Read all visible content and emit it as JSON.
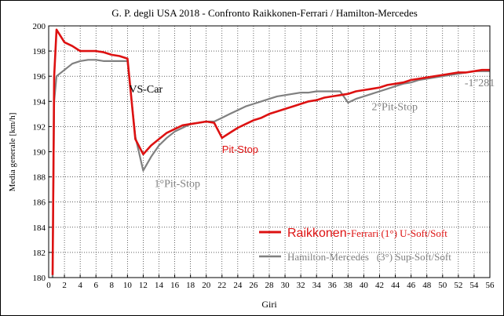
{
  "chart_data": {
    "type": "line",
    "title": "G. P. degli USA 2018 - Confronto Raikkonen-Ferrari / Hamilton-Mercedes",
    "xlabel": "Giri",
    "ylabel": "Media generale  [km/h]",
    "xlim": [
      0,
      56
    ],
    "ylim": [
      180,
      200
    ],
    "xticks": [
      0,
      2,
      4,
      6,
      8,
      10,
      12,
      14,
      16,
      18,
      20,
      22,
      24,
      26,
      28,
      30,
      32,
      34,
      36,
      38,
      40,
      42,
      44,
      46,
      48,
      50,
      52,
      54,
      56
    ],
    "yticks": [
      180,
      182,
      184,
      186,
      188,
      190,
      192,
      194,
      196,
      198,
      200
    ],
    "grid": true,
    "legend_position": "bottom-right",
    "series": [
      {
        "name_main": "Raikkonen-",
        "name_team": "Ferrari (1°) U-Soft/Soft",
        "color": "#dd1111",
        "x": [
          0.5,
          0.7,
          1,
          2,
          3,
          4,
          5,
          6,
          7,
          8,
          9,
          10,
          11,
          12,
          13,
          14,
          15,
          16,
          17,
          18,
          19,
          20,
          21,
          22,
          23,
          24,
          25,
          26,
          27,
          28,
          29,
          30,
          31,
          32,
          33,
          34,
          35,
          36,
          37,
          38,
          39,
          40,
          41,
          42,
          43,
          44,
          45,
          46,
          47,
          48,
          49,
          50,
          51,
          52,
          53,
          54,
          55,
          56
        ],
        "y": [
          180.2,
          196.0,
          199.7,
          198.7,
          198.4,
          198.0,
          198.0,
          198.0,
          197.9,
          197.7,
          197.6,
          197.4,
          191.0,
          189.8,
          190.5,
          191.0,
          191.5,
          191.8,
          192.1,
          192.2,
          192.3,
          192.4,
          192.3,
          191.1,
          191.5,
          191.9,
          192.2,
          192.5,
          192.7,
          193.0,
          193.2,
          193.4,
          193.6,
          193.8,
          194.0,
          194.1,
          194.3,
          194.4,
          194.5,
          194.6,
          194.8,
          194.9,
          195.0,
          195.1,
          195.3,
          195.4,
          195.5,
          195.7,
          195.8,
          195.9,
          196.0,
          196.1,
          196.2,
          196.3,
          196.3,
          196.4,
          196.5,
          196.5
        ]
      },
      {
        "name": "Hamilton-Mercedes   (3°) Sup-Soft/Soft",
        "color": "#808080",
        "x": [
          0.5,
          0.7,
          1,
          2,
          3,
          4,
          5,
          6,
          7,
          8,
          9,
          10,
          11,
          12,
          13,
          14,
          15,
          16,
          17,
          18,
          19,
          20,
          21,
          22,
          23,
          24,
          25,
          26,
          27,
          28,
          29,
          30,
          31,
          32,
          33,
          34,
          35,
          36,
          37,
          38,
          39,
          40,
          41,
          42,
          43,
          44,
          45,
          46,
          47,
          48,
          49,
          50,
          51,
          52,
          53,
          54,
          55,
          56
        ],
        "y": [
          180.0,
          194.0,
          196.0,
          196.5,
          197.0,
          197.2,
          197.3,
          197.3,
          197.2,
          197.2,
          197.2,
          197.2,
          191.2,
          188.5,
          189.6,
          190.5,
          191.1,
          191.6,
          191.9,
          192.2,
          192.3,
          192.4,
          192.4,
          192.7,
          193.0,
          193.3,
          193.6,
          193.8,
          194.0,
          194.2,
          194.4,
          194.5,
          194.6,
          194.7,
          194.7,
          194.8,
          194.8,
          194.8,
          194.8,
          193.9,
          194.2,
          194.4,
          194.6,
          194.8,
          195.0,
          195.2,
          195.4,
          195.5,
          195.7,
          195.8,
          195.9,
          196.0,
          196.1,
          196.2,
          196.3,
          196.4,
          196.4,
          196.4
        ]
      }
    ],
    "annotations": [
      {
        "id": "vs-car",
        "text": "VS-Car",
        "x": 10.2,
        "y": 194.7,
        "color": "#000000"
      },
      {
        "id": "pit-1",
        "text": "1°Pit-Stop",
        "x": 13.4,
        "y": 187.2,
        "color": "#808080"
      },
      {
        "id": "pit-red",
        "text": "Pit-Stop",
        "x": 22.0,
        "y": 189.9,
        "color": "#dd1111"
      },
      {
        "id": "pit-2",
        "text": "2°Pit-Stop",
        "x": 41.0,
        "y": 193.3,
        "color": "#808080"
      },
      {
        "id": "gap",
        "text": "-1\"281",
        "x": 52.8,
        "y": 195.2,
        "color": "#808080"
      }
    ]
  }
}
